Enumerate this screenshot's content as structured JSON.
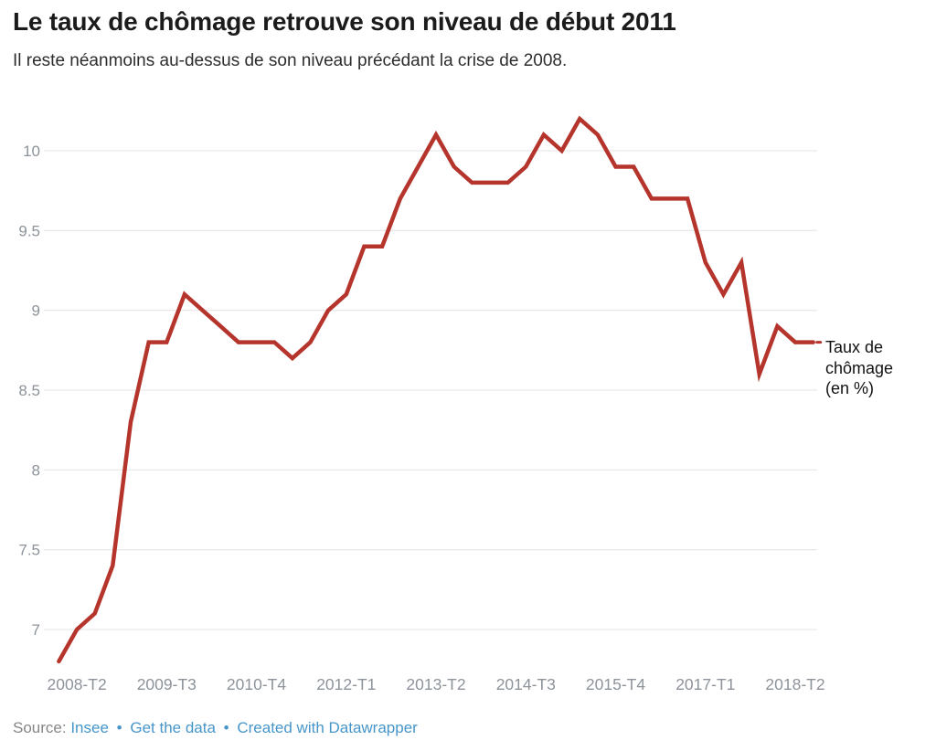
{
  "header": {
    "title": "Le taux de chômage retrouve son niveau de début 2011",
    "subtitle": "Il reste néanmoins au-dessus de son niveau précédant la crise de 2008."
  },
  "chart_data": {
    "type": "line",
    "title": "Le taux de chômage retrouve son niveau de début 2011",
    "subtitle": "Il reste néanmoins au-dessus de son niveau précédant la crise de 2008.",
    "series_name": "Taux de chômage (en %)",
    "x": [
      "2008-T1",
      "2008-T2",
      "2008-T3",
      "2008-T4",
      "2009-T1",
      "2009-T2",
      "2009-T3",
      "2009-T4",
      "2010-T1",
      "2010-T2",
      "2010-T3",
      "2010-T4",
      "2011-T1",
      "2011-T2",
      "2011-T3",
      "2011-T4",
      "2012-T1",
      "2012-T2",
      "2012-T3",
      "2012-T4",
      "2013-T1",
      "2013-T2",
      "2013-T3",
      "2013-T4",
      "2014-T1",
      "2014-T2",
      "2014-T3",
      "2014-T4",
      "2015-T1",
      "2015-T2",
      "2015-T3",
      "2015-T4",
      "2016-T1",
      "2016-T2",
      "2016-T3",
      "2016-T4",
      "2017-T1",
      "2017-T2",
      "2017-T3",
      "2017-T4",
      "2018-T1",
      "2018-T2",
      "2018-T3"
    ],
    "values": [
      6.8,
      7.0,
      7.1,
      7.4,
      8.3,
      8.8,
      8.8,
      9.1,
      9.0,
      8.9,
      8.8,
      8.8,
      8.8,
      8.7,
      8.8,
      9.0,
      9.1,
      9.4,
      9.4,
      9.7,
      9.9,
      10.1,
      9.9,
      9.8,
      9.8,
      9.8,
      9.9,
      10.1,
      10.0,
      10.2,
      10.1,
      9.9,
      9.9,
      9.7,
      9.7,
      9.7,
      9.3,
      9.1,
      9.3,
      8.6,
      8.9,
      8.8,
      8.8
    ],
    "x_tick_labels": [
      "2008-T2",
      "2009-T3",
      "2010-T4",
      "2012-T1",
      "2013-T2",
      "2014-T3",
      "2015-T4",
      "2017-T1",
      "2018-T2"
    ],
    "y_tick_labels": [
      "7",
      "7.5",
      "8",
      "8.5",
      "9",
      "9.5",
      "10"
    ],
    "y_ticks": [
      7,
      7.5,
      8,
      8.5,
      9,
      9.5,
      10
    ],
    "ylim": [
      6.7,
      10.3
    ],
    "xlabel": "",
    "ylabel": "",
    "grid": true,
    "legend_position": "right of line end",
    "line_color": "#b5352c",
    "grid_color": "#e3e4e6",
    "tick_color": "#8d939b"
  },
  "annotation": {
    "line1": "Taux de",
    "line2": "chômage",
    "line3": "(en %)"
  },
  "footer": {
    "source_label": "Source:",
    "link_source": "Insee",
    "link_data": "Get the data",
    "link_credit": "Created with Datawrapper",
    "separator": "•"
  }
}
